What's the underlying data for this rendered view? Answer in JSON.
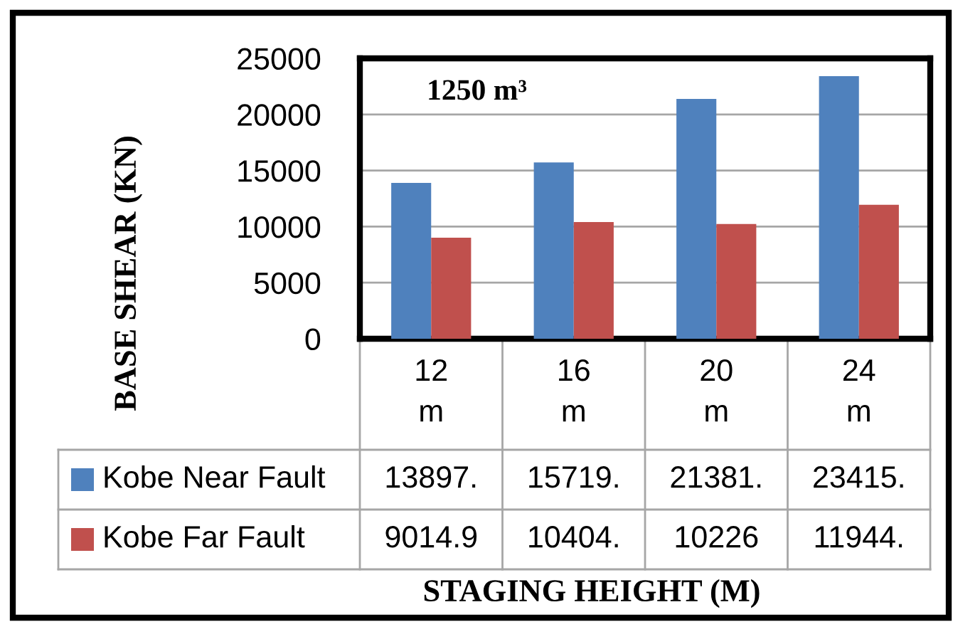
{
  "chart_data": {
    "type": "bar",
    "ylabel": "BASE SHEAR (KN)",
    "annotations": [
      "1250 m³",
      "STAGING HEIGHT (M)"
    ],
    "categories": [
      "12 m",
      "16 m",
      "20 m",
      "24 m"
    ],
    "series": [
      {
        "name": "Kobe Near Fault",
        "color": "#4f81bd",
        "values": [
          13897,
          15719,
          21381,
          23415
        ],
        "value_labels": [
          "13897.",
          "15719.",
          "21381.",
          "23415."
        ]
      },
      {
        "name": "Kobe Far Fault",
        "color": "#c0504d",
        "values": [
          9014.9,
          10404,
          10226,
          11944
        ],
        "value_labels": [
          "9014.9",
          "10404.",
          "10226",
          "11944."
        ]
      }
    ],
    "ylim": [
      0,
      25000
    ],
    "yticks": [
      0,
      5000,
      10000,
      15000,
      20000,
      25000
    ],
    "grid": "y",
    "legend": "bottom"
  }
}
